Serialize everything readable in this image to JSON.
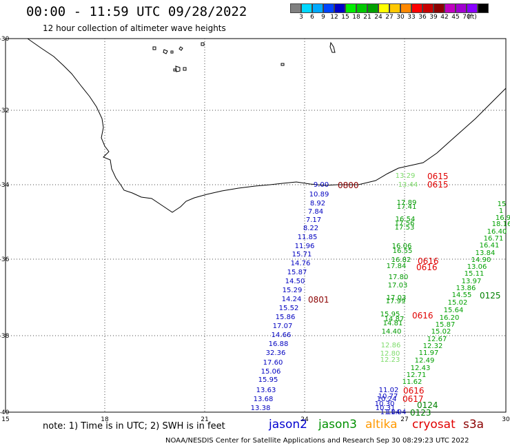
{
  "header": {
    "title": "00:00 - 11:59 UTC 09/28/2022",
    "subtitle": "12 hour collection of altimeter wave heights"
  },
  "scale": {
    "colors": [
      "#808080",
      "#00d8ff",
      "#00aaff",
      "#0044ff",
      "#0000c8",
      "#00ee00",
      "#00c800",
      "#00a000",
      "#ffff00",
      "#ffc800",
      "#ff8800",
      "#ff0000",
      "#c80000",
      "#8c0000",
      "#c000c0",
      "#a000d0",
      "#8800ff",
      "#000000"
    ],
    "labels": [
      "3",
      "6",
      "9",
      "12",
      "15",
      "18",
      "21",
      "24",
      "27",
      "30",
      "33",
      "36",
      "39",
      "42",
      "45",
      "70"
    ],
    "unit": "(ft)"
  },
  "axes": {
    "x_ticks": [
      "15",
      "18",
      "21",
      "24",
      "27",
      "30"
    ],
    "y_ticks": [
      "-30",
      "-32",
      "-34",
      "-36",
      "-38",
      "-40"
    ]
  },
  "passes": [
    {
      "id": "altika-a",
      "color": "#7ddc6a",
      "points": [
        [
          "13.29",
          588,
          255
        ],
        [
          "13.44",
          592,
          268
        ]
      ]
    },
    {
      "id": "jason3-a",
      "color": "#009a00",
      "points": [
        [
          "17.89",
          590,
          294
        ],
        [
          "17.41",
          590,
          300
        ],
        [
          "16.54",
          588,
          318
        ],
        [
          "17.56",
          587,
          324
        ],
        [
          "17.53",
          587,
          330
        ]
      ]
    },
    {
      "id": "mix-a",
      "color": "#009a00",
      "points": [
        [
          "16.06",
          583,
          357
        ],
        [
          "16.55",
          584,
          364
        ],
        [
          "16.82",
          582,
          377
        ],
        [
          "17.84",
          575,
          386
        ],
        [
          "17.80",
          578,
          402
        ],
        [
          "17.03",
          577,
          414
        ],
        [
          "17.03",
          575,
          432
        ],
        [
          "17.99",
          574,
          437
        ],
        [
          "15.95",
          566,
          456
        ],
        [
          "14.87",
          572,
          463
        ],
        [
          "14.81",
          570,
          469
        ],
        [
          "14.40",
          568,
          481
        ]
      ]
    },
    {
      "id": "altika-b",
      "color": "#7ddc6a",
      "points": [
        [
          "12.86",
          567,
          501
        ],
        [
          "12.80",
          566,
          513
        ],
        [
          "12.23",
          566,
          522
        ]
      ]
    },
    {
      "id": "cryosat-e",
      "color": "#00a000",
      "points": [
        [
          "15",
          728,
          296
        ],
        [
          "1",
          727,
          306
        ],
        [
          "16.9",
          730,
          316
        ],
        [
          "18.16",
          728,
          325
        ],
        [
          "16.40",
          721,
          336
        ],
        [
          "16.71",
          716,
          346
        ],
        [
          "16.41",
          710,
          356
        ],
        [
          "13.84",
          704,
          367
        ],
        [
          "14.90",
          698,
          377
        ],
        [
          "13.06",
          692,
          387
        ],
        [
          "15.11",
          688,
          397
        ],
        [
          "13.97",
          684,
          408
        ],
        [
          "13.86",
          676,
          418
        ],
        [
          "14.55",
          670,
          428
        ],
        [
          "15.02",
          664,
          439
        ],
        [
          "15.64",
          658,
          450
        ],
        [
          "16.20",
          652,
          461
        ],
        [
          "15.87",
          646,
          471
        ],
        [
          "15.02",
          640,
          481
        ],
        [
          "12.67",
          634,
          492
        ],
        [
          "12.32",
          628,
          502
        ],
        [
          "11.97",
          622,
          512
        ],
        [
          "12.49",
          616,
          523
        ],
        [
          "12.43",
          610,
          534
        ],
        [
          "12.71",
          604,
          544
        ],
        [
          "11.62",
          598,
          554
        ]
      ]
    },
    {
      "id": "jason2-w",
      "color": "#0000c0",
      "points": [
        [
          "9.00",
          466,
          268
        ],
        [
          "10.89",
          463,
          282
        ],
        [
          "8.92",
          461,
          295
        ],
        [
          "7.84",
          458,
          307
        ],
        [
          "7.17",
          455,
          319
        ],
        [
          "8.22",
          451,
          331
        ],
        [
          "11.85",
          446,
          344
        ],
        [
          "11.96",
          442,
          357
        ],
        [
          "15.71",
          438,
          369
        ],
        [
          "14.76",
          436,
          382
        ],
        [
          "15.87",
          431,
          395
        ],
        [
          "14.50",
          428,
          408
        ],
        [
          "15.29",
          424,
          421
        ],
        [
          "14.24",
          423,
          434
        ],
        [
          "15.52",
          419,
          447
        ],
        [
          "15.86",
          414,
          460
        ],
        [
          "17.07",
          410,
          473
        ],
        [
          "14.66",
          408,
          486
        ],
        [
          "16.88",
          404,
          499
        ],
        [
          "32.36",
          400,
          512
        ],
        [
          "17.60",
          396,
          526
        ],
        [
          "15.06",
          393,
          539
        ],
        [
          "15.95",
          389,
          551
        ],
        [
          "13.63",
          386,
          566
        ],
        [
          "13.68",
          382,
          579
        ],
        [
          "13.38",
          378,
          592
        ]
      ]
    },
    {
      "id": "jason2-s",
      "color": "#0000c0",
      "points": [
        [
          "11.02",
          564,
          566
        ],
        [
          "10.77",
          563,
          575
        ],
        [
          "10.24",
          561,
          579
        ],
        [
          "10.30",
          558,
          586
        ],
        [
          "10.31",
          559,
          592
        ],
        [
          "11.04",
          566,
          598
        ],
        [
          "11.04",
          575,
          598
        ]
      ]
    }
  ],
  "times": [
    {
      "label": "0800",
      "color": "#8b0000",
      "x": 490,
      "y": 269
    },
    {
      "label": "0615",
      "color": "#e00000",
      "x": 620,
      "y": 256
    },
    {
      "label": "0615",
      "color": "#e00000",
      "x": 620,
      "y": 268
    },
    {
      "label": "0616",
      "color": "#e00000",
      "x": 606,
      "y": 379
    },
    {
      "label": "0616",
      "color": "#e00000",
      "x": 604,
      "y": 388
    },
    {
      "label": "0801",
      "color": "#8b0000",
      "x": 447,
      "y": 435
    },
    {
      "label": "0616",
      "color": "#e00000",
      "x": 598,
      "y": 458
    },
    {
      "label": "0125",
      "color": "#008000",
      "x": 696,
      "y": 429
    },
    {
      "label": "0616",
      "color": "#e00000",
      "x": 585,
      "y": 567
    },
    {
      "label": "0617",
      "color": "#e00000",
      "x": 584,
      "y": 579
    },
    {
      "label": "0124",
      "color": "#008000",
      "x": 605,
      "y": 588
    },
    {
      "label": "0123",
      "color": "#008000",
      "x": 595,
      "y": 599
    }
  ],
  "footer": {
    "note": "note: 1) Time is in UTC; 2) SWH is in feet",
    "legend": [
      {
        "name": "jason2",
        "color": "#0000d0"
      },
      {
        "name": "jason3",
        "color": "#009000"
      },
      {
        "name": "altika",
        "color": "#ff9900"
      },
      {
        "name": "cryosat",
        "color": "#e00000"
      },
      {
        "name": "s3a",
        "color": "#8b0000"
      }
    ],
    "credit": "NOAA/NESDIS Center for Satellite Applications and Research   Sep 30 08:29:23 UTC 2022"
  }
}
